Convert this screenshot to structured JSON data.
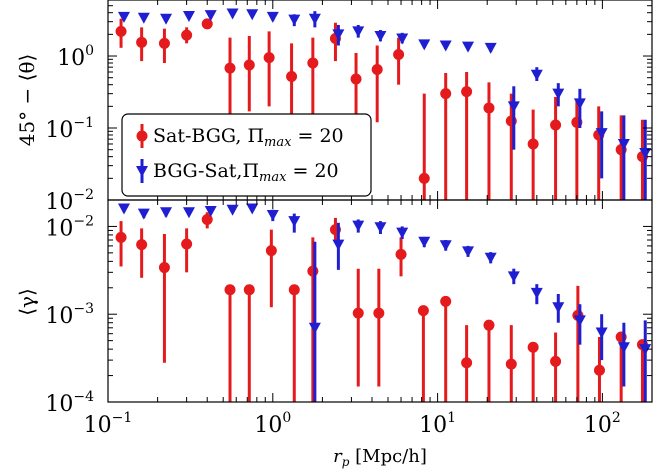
{
  "chart_data": [
    {
      "type": "scatter",
      "panel": "top",
      "ylabel": "45° − ⟨θ⟩",
      "xlabel": "",
      "xscale": "log",
      "yscale": "log",
      "xlim": [
        0.1,
        200
      ],
      "ylim": [
        0.01,
        6
      ],
      "yticks": [
        0.01,
        0.1,
        1
      ],
      "ytick_labels": [
        "10",
        "10",
        "10"
      ],
      "ytick_exps": [
        "−2",
        "−1",
        "0"
      ],
      "legend": {
        "placement": "lower-left",
        "entries": [
          {
            "label": "Sat-BGG, Π",
            "sub": "max",
            "rest": " = 20",
            "color": "#e41a1c",
            "marker": "circle"
          },
          {
            "label": "BGG-Sat,Π",
            "sub": "max",
            "rest": " = 20",
            "color": "#1f1fd1",
            "marker": "triangle-down"
          }
        ]
      },
      "series": [
        {
          "color": "#e41a1c",
          "marker": "circle",
          "points": [
            {
              "x": 0.12,
              "y": 2.2,
              "lo": 1.3,
              "hi": 3.3
            },
            {
              "x": 0.16,
              "y": 1.55,
              "lo": 0.85,
              "hi": 2.5
            },
            {
              "x": 0.22,
              "y": 1.5,
              "lo": 0.8,
              "hi": 2.4
            },
            {
              "x": 0.3,
              "y": 1.95,
              "lo": 1.5,
              "hi": 2.5
            },
            {
              "x": 0.4,
              "y": 2.8,
              "lo": 2.4,
              "hi": 3.2
            },
            {
              "x": 0.55,
              "y": 0.68,
              "lo": 0.1,
              "hi": 1.8
            },
            {
              "x": 0.72,
              "y": 0.75,
              "lo": 0.17,
              "hi": 1.9
            },
            {
              "x": 0.95,
              "y": 0.95,
              "lo": 0.2,
              "hi": 2.2
            },
            {
              "x": 1.3,
              "y": 0.52,
              "lo": 0.08,
              "hi": 1.5
            },
            {
              "x": 1.75,
              "y": 0.8,
              "lo": 0.1,
              "hi": 1.8
            },
            {
              "x": 2.4,
              "y": 1.75,
              "lo": 0.85,
              "hi": 2.9
            },
            {
              "x": 3.2,
              "y": 0.48,
              "lo": 0.06,
              "hi": 1.1
            },
            {
              "x": 4.3,
              "y": 0.65,
              "lo": 0.12,
              "hi": 1.4
            },
            {
              "x": 5.8,
              "y": 1.05,
              "lo": 0.4,
              "hi": 1.8
            },
            {
              "x": 8.3,
              "y": 0.02,
              "lo": 0.01,
              "hi": 0.3
            },
            {
              "x": 11.2,
              "y": 0.3,
              "lo": 0.01,
              "hi": 0.58
            },
            {
              "x": 15,
              "y": 0.32,
              "lo": 0.01,
              "hi": 0.6
            },
            {
              "x": 20.5,
              "y": 0.19,
              "lo": 0.01,
              "hi": 0.43
            },
            {
              "x": 28,
              "y": 0.125,
              "lo": 0.01,
              "hi": 0.3
            },
            {
              "x": 38,
              "y": 0.06,
              "lo": 0.01,
              "hi": 0.18
            },
            {
              "x": 52,
              "y": 0.11,
              "lo": 0.01,
              "hi": 0.27
            },
            {
              "x": 70,
              "y": 0.12,
              "lo": 0.01,
              "hi": 0.25
            },
            {
              "x": 95,
              "y": 0.08,
              "lo": 0.01,
              "hi": 0.2
            },
            {
              "x": 130,
              "y": 0.05,
              "lo": 0.01,
              "hi": 0.15
            },
            {
              "x": 175,
              "y": 0.04,
              "lo": 0.01,
              "hi": 0.13
            }
          ]
        },
        {
          "color": "#1f1fd1",
          "marker": "triangle-down",
          "points": [
            {
              "x": 0.125,
              "y": 3.5,
              "lo": 3.3,
              "hi": 3.7
            },
            {
              "x": 0.165,
              "y": 3.4,
              "lo": 3.2,
              "hi": 3.6
            },
            {
              "x": 0.225,
              "y": 3.3,
              "lo": 3.1,
              "hi": 3.5
            },
            {
              "x": 0.31,
              "y": 3.6,
              "lo": 3.4,
              "hi": 3.8
            },
            {
              "x": 0.42,
              "y": 3.7,
              "lo": 3.5,
              "hi": 3.9
            },
            {
              "x": 0.57,
              "y": 3.9,
              "lo": 3.7,
              "hi": 4.1
            },
            {
              "x": 0.75,
              "y": 3.8,
              "lo": 3.6,
              "hi": 4.0
            },
            {
              "x": 1.0,
              "y": 3.5,
              "lo": 3.1,
              "hi": 3.9
            },
            {
              "x": 1.35,
              "y": 3.2,
              "lo": 2.6,
              "hi": 3.8
            },
            {
              "x": 1.8,
              "y": 3.3,
              "lo": 2.5,
              "hi": 4.2
            },
            {
              "x": 2.5,
              "y": 2.0,
              "lo": 1.4,
              "hi": 2.7
            },
            {
              "x": 3.3,
              "y": 2.2,
              "lo": 1.8,
              "hi": 2.7
            },
            {
              "x": 4.5,
              "y": 1.9,
              "lo": 1.6,
              "hi": 2.3
            },
            {
              "x": 6.1,
              "y": 1.75,
              "lo": 1.5,
              "hi": 2.1
            },
            {
              "x": 8.3,
              "y": 1.45,
              "lo": 1.3,
              "hi": 1.65
            },
            {
              "x": 11.2,
              "y": 1.4,
              "lo": 1.25,
              "hi": 1.6
            },
            {
              "x": 15.3,
              "y": 1.35,
              "lo": 1.2,
              "hi": 1.55
            },
            {
              "x": 21,
              "y": 1.3,
              "lo": 1.15,
              "hi": 1.5
            },
            {
              "x": 29,
              "y": 0.2,
              "lo": 0.05,
              "hi": 0.38
            },
            {
              "x": 40,
              "y": 0.55,
              "lo": 0.45,
              "hi": 0.7
            },
            {
              "x": 54,
              "y": 0.3,
              "lo": 0.2,
              "hi": 0.42
            },
            {
              "x": 73,
              "y": 0.22,
              "lo": 0.1,
              "hi": 0.35
            },
            {
              "x": 99,
              "y": 0.085,
              "lo": 0.02,
              "hi": 0.17
            },
            {
              "x": 135,
              "y": 0.06,
              "lo": 0.01,
              "hi": 0.15
            },
            {
              "x": 182,
              "y": 0.045,
              "lo": 0.01,
              "hi": 0.13
            }
          ]
        }
      ]
    },
    {
      "type": "scatter",
      "panel": "bottom",
      "ylabel": "⟨γ⟩",
      "xlabel": "r",
      "xlabel_sub": "p",
      "xlabel_rest": " [Mpc/h]",
      "xscale": "log",
      "yscale": "log",
      "xlim": [
        0.1,
        200
      ],
      "ylim": [
        0.0001,
        0.02
      ],
      "xticks": [
        0.1,
        1,
        10,
        100
      ],
      "xtick_labels": [
        "10",
        "10",
        "10",
        "10"
      ],
      "xtick_exps": [
        "−1",
        "0",
        "1",
        "2"
      ],
      "yticks": [
        0.0001,
        0.001,
        0.01
      ],
      "ytick_labels": [
        "10",
        "10",
        "10"
      ],
      "ytick_exps": [
        "−4",
        "−3",
        "−2"
      ],
      "series": [
        {
          "color": "#e41a1c",
          "marker": "circle",
          "points": [
            {
              "x": 0.12,
              "y": 0.0075,
              "lo": 0.0035,
              "hi": 0.0115
            },
            {
              "x": 0.16,
              "y": 0.0062,
              "lo": 0.0026,
              "hi": 0.0095
            },
            {
              "x": 0.22,
              "y": 0.0034,
              "lo": 0.00028,
              "hi": 0.0082
            },
            {
              "x": 0.3,
              "y": 0.0063,
              "lo": 0.003,
              "hi": 0.0095
            },
            {
              "x": 0.4,
              "y": 0.012,
              "lo": 0.0095,
              "hi": 0.0145
            },
            {
              "x": 0.55,
              "y": 0.0019,
              "lo": 0.0001,
              "hi": 0.0019
            },
            {
              "x": 0.72,
              "y": 0.0019,
              "lo": 0.0001,
              "hi": 0.0019
            },
            {
              "x": 0.98,
              "y": 0.0053,
              "lo": 0.0012,
              "hi": 0.0092
            },
            {
              "x": 1.35,
              "y": 0.0019,
              "lo": 0.0001,
              "hi": 0.0019
            },
            {
              "x": 1.75,
              "y": 0.0031,
              "lo": 0.0001,
              "hi": 0.0075
            },
            {
              "x": 2.4,
              "y": 0.0092,
              "lo": 0.0065,
              "hi": 0.0125
            },
            {
              "x": 3.3,
              "y": 0.00103,
              "lo": 0.00015,
              "hi": 0.0033
            },
            {
              "x": 4.4,
              "y": 0.00103,
              "lo": 0.00015,
              "hi": 0.0033
            },
            {
              "x": 6.0,
              "y": 0.0048,
              "lo": 0.0027,
              "hi": 0.0075
            },
            {
              "x": 8.2,
              "y": 0.0011,
              "lo": 0.0001,
              "hi": 0.0011
            },
            {
              "x": 11.2,
              "y": 0.0014,
              "lo": 0.0001,
              "hi": 0.0014
            },
            {
              "x": 15,
              "y": 0.00028,
              "lo": 0.0001,
              "hi": 0.00075
            },
            {
              "x": 20.5,
              "y": 0.00075,
              "lo": 0.0001,
              "hi": 0.00075
            },
            {
              "x": 28,
              "y": 0.00027,
              "lo": 0.0001,
              "hi": 0.00075
            },
            {
              "x": 38,
              "y": 0.00042,
              "lo": 0.0001,
              "hi": 0.00042
            },
            {
              "x": 52,
              "y": 0.00029,
              "lo": 0.0001,
              "hi": 0.00062
            },
            {
              "x": 71,
              "y": 0.00097,
              "lo": 0.0001,
              "hi": 0.0021
            },
            {
              "x": 96,
              "y": 0.00023,
              "lo": 0.0001,
              "hi": 0.00055
            },
            {
              "x": 130,
              "y": 0.00055,
              "lo": 0.0001,
              "hi": 0.00055
            },
            {
              "x": 175,
              "y": 0.00045,
              "lo": 0.0001,
              "hi": 0.00045
            }
          ]
        },
        {
          "color": "#1f1fd1",
          "marker": "triangle-down",
          "points": [
            {
              "x": 0.125,
              "y": 0.016,
              "lo": 0.0145,
              "hi": 0.0175
            },
            {
              "x": 0.165,
              "y": 0.014,
              "lo": 0.0125,
              "hi": 0.0155
            },
            {
              "x": 0.225,
              "y": 0.0145,
              "lo": 0.013,
              "hi": 0.016
            },
            {
              "x": 0.31,
              "y": 0.0145,
              "lo": 0.0135,
              "hi": 0.0155
            },
            {
              "x": 0.42,
              "y": 0.015,
              "lo": 0.014,
              "hi": 0.016
            },
            {
              "x": 0.57,
              "y": 0.0155,
              "lo": 0.0145,
              "hi": 0.0165
            },
            {
              "x": 0.75,
              "y": 0.016,
              "lo": 0.015,
              "hi": 0.017
            },
            {
              "x": 1.0,
              "y": 0.0135,
              "lo": 0.0115,
              "hi": 0.0155
            },
            {
              "x": 1.35,
              "y": 0.0115,
              "lo": 0.0085,
              "hi": 0.014
            },
            {
              "x": 1.8,
              "y": 0.0007,
              "lo": 0.0001,
              "hi": 0.0067
            },
            {
              "x": 2.5,
              "y": 0.0062,
              "lo": 0.0032,
              "hi": 0.011
            },
            {
              "x": 3.3,
              "y": 0.0102,
              "lo": 0.0085,
              "hi": 0.012
            },
            {
              "x": 4.5,
              "y": 0.0098,
              "lo": 0.0082,
              "hi": 0.0115
            },
            {
              "x": 6.1,
              "y": 0.0085,
              "lo": 0.0072,
              "hi": 0.01
            },
            {
              "x": 8.3,
              "y": 0.0067,
              "lo": 0.0058,
              "hi": 0.0076
            },
            {
              "x": 11.2,
              "y": 0.0061,
              "lo": 0.0053,
              "hi": 0.007
            },
            {
              "x": 15.3,
              "y": 0.0052,
              "lo": 0.0045,
              "hi": 0.006
            },
            {
              "x": 21,
              "y": 0.0044,
              "lo": 0.0038,
              "hi": 0.0051
            },
            {
              "x": 29,
              "y": 0.0027,
              "lo": 0.0022,
              "hi": 0.0033
            },
            {
              "x": 40,
              "y": 0.00175,
              "lo": 0.0013,
              "hi": 0.0022
            },
            {
              "x": 54,
              "y": 0.0012,
              "lo": 0.0008,
              "hi": 0.0017
            },
            {
              "x": 73,
              "y": 0.00085,
              "lo": 0.00045,
              "hi": 0.0013
            },
            {
              "x": 99,
              "y": 0.00062,
              "lo": 0.0003,
              "hi": 0.001
            },
            {
              "x": 135,
              "y": 0.00042,
              "lo": 0.00015,
              "hi": 0.0008
            },
            {
              "x": 182,
              "y": 0.0004,
              "lo": 0.0001,
              "hi": 0.00085
            }
          ]
        }
      ]
    }
  ]
}
